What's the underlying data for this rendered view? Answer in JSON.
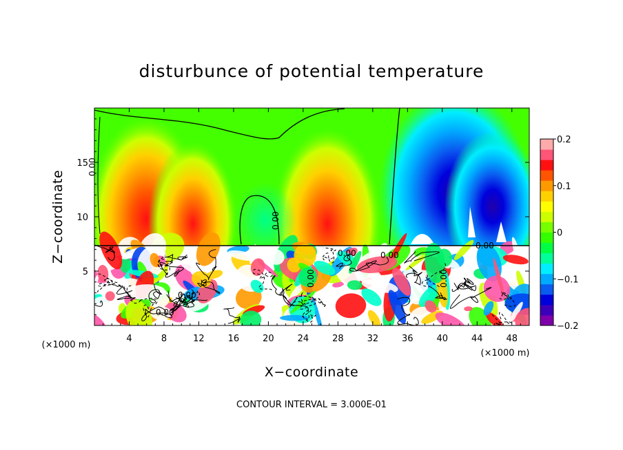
{
  "chart_data": {
    "type": "heatmap",
    "title": "disturbunce of potential temperature",
    "xlabel": "X−coordinate",
    "ylabel": "Z−coordinate",
    "x_unit": "(×1000 m)",
    "y_unit": "(×1000 m)",
    "xlim": [
      0,
      50
    ],
    "ylim": [
      0,
      20
    ],
    "x_ticks": [
      4,
      8,
      12,
      16,
      20,
      24,
      28,
      32,
      36,
      40,
      44,
      48
    ],
    "y_ticks": [
      5,
      10,
      15
    ],
    "colorbar": {
      "min": -0.2,
      "max": 0.2,
      "ticks": [
        0.2,
        0.1,
        0,
        -0.1,
        -0.2
      ],
      "tick_labels": [
        "0.2",
        "0.1",
        "0",
        "−0.1",
        "−0.2"
      ],
      "colors": [
        "#7f00aa",
        "#3c00bb",
        "#0000dd",
        "#0a5cf0",
        "#00aaff",
        "#00eeff",
        "#00ff99",
        "#00ff44",
        "#33ff00",
        "#77ff00",
        "#ccff00",
        "#ffff00",
        "#ffd000",
        "#ff9900",
        "#ff5500",
        "#ff1111",
        "#ff5577",
        "#ffaaaa"
      ]
    },
    "contour_interval": "CONTOUR INTERVAL = 3.000E-01",
    "contour_labels": [
      "0.00",
      "0.00",
      "0.00",
      "0.00",
      "0.00",
      "0.00",
      "0.00",
      "0.00",
      "0.00"
    ],
    "upper_layer_anomalies": [
      {
        "x": 6,
        "z": 10,
        "value": 0.12
      },
      {
        "x": 11,
        "z": 10.5,
        "value": 0.15
      },
      {
        "x": 26.5,
        "z": 10,
        "value": 0.11
      },
      {
        "x": 40,
        "z": 11.5,
        "value": -0.15
      },
      {
        "x": 46,
        "z": 12,
        "value": -0.19
      },
      {
        "x": 20,
        "z": 11,
        "value": -0.02
      }
    ]
  }
}
